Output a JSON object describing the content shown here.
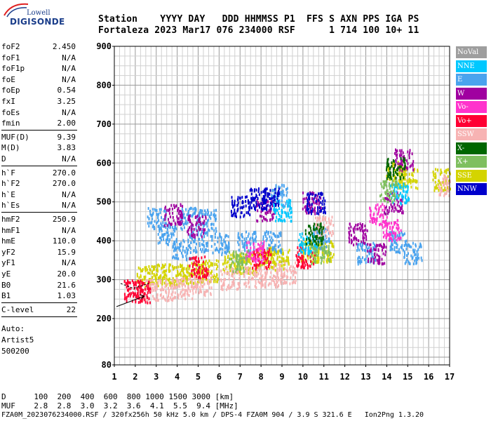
{
  "logo": {
    "top": "Lowell",
    "bottom": "DIGISONDE"
  },
  "header": {
    "line1": "Station    YYYY DAY   DDD HHMMSS P1  FFS S AXN PPS IGA PS",
    "line2": "Fortaleza 2023 Mar17 076 234000 RSF      1 714 100 10+ 11"
  },
  "params": [
    {
      "label": "foF2",
      "value": "2.450"
    },
    {
      "label": "foF1",
      "value": "N/A"
    },
    {
      "label": "foF1p",
      "value": "N/A"
    },
    {
      "label": "foE",
      "value": "N/A"
    },
    {
      "label": "foEp",
      "value": "0.54"
    },
    {
      "label": "fxI",
      "value": "3.25"
    },
    {
      "label": "foEs",
      "value": "N/A"
    },
    {
      "label": "fmin",
      "value": "2.00"
    },
    {
      "label": "MUF(D)",
      "value": "9.39"
    },
    {
      "label": "M(D)",
      "value": "3.83"
    },
    {
      "label": "D",
      "value": "N/A"
    },
    {
      "label": "h`F",
      "value": "270.0"
    },
    {
      "label": "h`F2",
      "value": "270.0"
    },
    {
      "label": "h`E",
      "value": "N/A"
    },
    {
      "label": "h`Es",
      "value": "N/A"
    },
    {
      "label": "hmF2",
      "value": "250.9"
    },
    {
      "label": "hmF1",
      "value": "N/A"
    },
    {
      "label": "hmE",
      "value": "110.0"
    },
    {
      "label": "yF2",
      "value": "15.9"
    },
    {
      "label": "yF1",
      "value": "N/A"
    },
    {
      "label": "yE",
      "value": "20.0"
    },
    {
      "label": "B0",
      "value": "21.6"
    },
    {
      "label": "B1",
      "value": "1.03"
    },
    {
      "label": "C-level",
      "value": "22"
    }
  ],
  "auto": {
    "line1": "Auto:",
    "line2": "Artist5",
    "line3": "500200"
  },
  "legend": [
    {
      "label": "NoVal",
      "color": "#9e9e9e"
    },
    {
      "label": "NNE",
      "color": "#00c8ff"
    },
    {
      "label": "E",
      "color": "#4aa3ee"
    },
    {
      "label": "W",
      "color": "#a000a0"
    },
    {
      "label": "Vo-",
      "color": "#ff33cc"
    },
    {
      "label": "Vo+",
      "color": "#ff0033"
    },
    {
      "label": "SSW",
      "color": "#f7b3b3"
    },
    {
      "label": "X-",
      "color": "#006600"
    },
    {
      "label": "X+",
      "color": "#7fbf5f"
    },
    {
      "label": "SSE",
      "color": "#d4d400"
    },
    {
      "label": "NNW",
      "color": "#0000cc"
    }
  ],
  "chart_data": {
    "type": "scatter",
    "title": "",
    "xlabel": "",
    "ylabel": "",
    "xlim": [
      1,
      17
    ],
    "ylim": [
      80,
      900
    ],
    "x_ticks": [
      1,
      2,
      3,
      4,
      5,
      6,
      7,
      8,
      9,
      10,
      11,
      12,
      13,
      14,
      15,
      16,
      17
    ],
    "y_ticks": [
      80,
      200,
      300,
      400,
      500,
      600,
      700,
      800,
      900
    ],
    "grid": true,
    "series": [
      {
        "name": "SSE",
        "color": "#d4d400",
        "clusters": [
          [
            2.5,
            310
          ],
          [
            3.2,
            315
          ],
          [
            4.0,
            315
          ],
          [
            4.8,
            320
          ],
          [
            5.5,
            325
          ],
          [
            6.6,
            345
          ],
          [
            7.4,
            345
          ],
          [
            8.2,
            360
          ],
          [
            8.9,
            355
          ],
          [
            10.3,
            375
          ],
          [
            11.0,
            375
          ],
          [
            14.4,
            580
          ],
          [
            15.0,
            565
          ],
          [
            16.6,
            560
          ]
        ]
      },
      {
        "name": "E",
        "color": "#4aa3ee",
        "clusters": [
          [
            3.0,
            460
          ],
          [
            3.5,
            420
          ],
          [
            4.2,
            380
          ],
          [
            4.6,
            460
          ],
          [
            5.0,
            400
          ],
          [
            5.4,
            455
          ],
          [
            6.0,
            395
          ],
          [
            7.3,
            400
          ],
          [
            8.5,
            400
          ],
          [
            8.9,
            520
          ],
          [
            10.8,
            410
          ],
          [
            13.0,
            370
          ],
          [
            14.5,
            400
          ],
          [
            15.2,
            370
          ]
        ]
      },
      {
        "name": "SSW",
        "color": "#f7b3b3",
        "clusters": [
          [
            2.5,
            275
          ],
          [
            3.4,
            275
          ],
          [
            4.3,
            280
          ],
          [
            5.2,
            290
          ],
          [
            6.5,
            305
          ],
          [
            7.6,
            310
          ],
          [
            8.4,
            310
          ],
          [
            9.2,
            320
          ],
          [
            11.0,
            440
          ],
          [
            16.9,
            545
          ]
        ]
      },
      {
        "name": "W",
        "color": "#a000a0",
        "clusters": [
          [
            3.8,
            470
          ],
          [
            4.9,
            440
          ],
          [
            8.2,
            480
          ],
          [
            10.4,
            500
          ],
          [
            12.6,
            420
          ],
          [
            13.5,
            370
          ],
          [
            14.3,
            500
          ],
          [
            14.8,
            610
          ]
        ]
      },
      {
        "name": "NNW",
        "color": "#0000cc",
        "clusters": [
          [
            7.0,
            490
          ],
          [
            7.8,
            510
          ],
          [
            8.4,
            510
          ],
          [
            10.6,
            500
          ]
        ]
      },
      {
        "name": "Vo+",
        "color": "#ff0033",
        "clusters": [
          [
            1.9,
            275
          ],
          [
            2.3,
            270
          ],
          [
            5.0,
            335
          ],
          [
            8.0,
            355
          ],
          [
            10.1,
            360
          ]
        ]
      },
      {
        "name": "Vo-",
        "color": "#ff33cc",
        "clusters": [
          [
            7.7,
            375
          ],
          [
            13.6,
            470
          ],
          [
            14.2,
            430
          ]
        ]
      },
      {
        "name": "NNE",
        "color": "#00c8ff",
        "clusters": [
          [
            9.0,
            480
          ],
          [
            10.2,
            395
          ],
          [
            14.6,
            525
          ]
        ]
      },
      {
        "name": "X+",
        "color": "#7fbf5f",
        "clusters": [
          [
            6.9,
            350
          ],
          [
            10.8,
            370
          ],
          [
            14.1,
            530
          ]
        ]
      },
      {
        "name": "X-",
        "color": "#006600",
        "clusters": [
          [
            10.5,
            420
          ],
          [
            14.4,
            590
          ]
        ]
      }
    ]
  },
  "footer": {
    "line1": "D      100  200  400  600  800 1000 1500 3000 [km]",
    "line2": "MUF    2.8  2.8  3.0  3.2  3.6  4.1  5.5  9.4 [MHz]",
    "line3": "FZA0M_2023076234000.RSF / 320fx256h 50 kHz 5.0 km / DPS-4 FZA0M 904 / 3.9 S 321.6 E   Ion2Png 1.3.20"
  }
}
